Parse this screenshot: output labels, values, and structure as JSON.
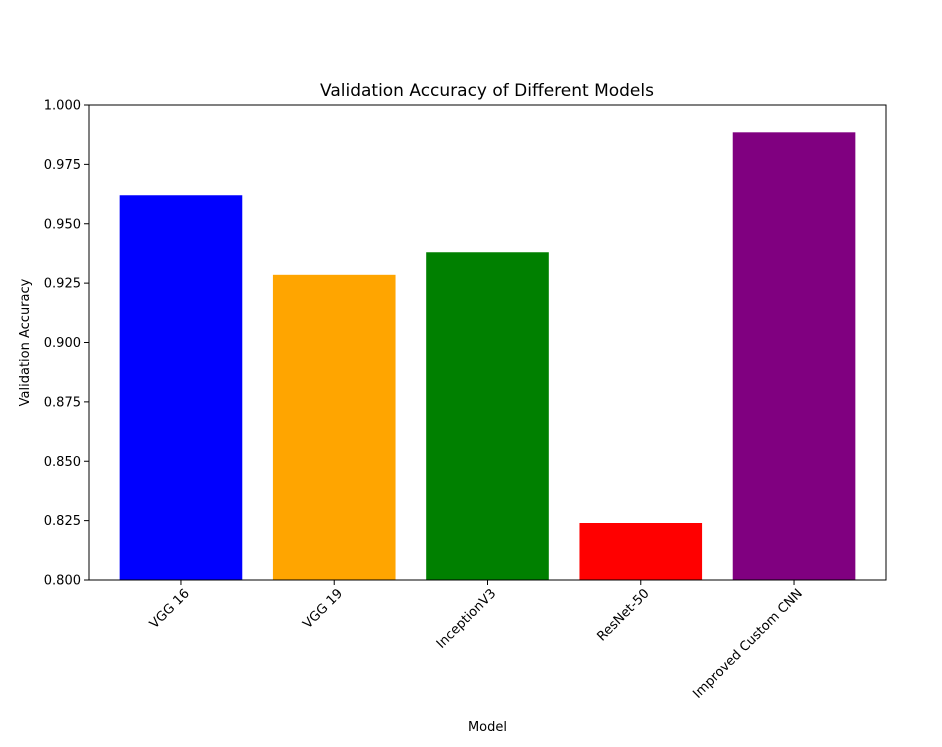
{
  "chart_data": {
    "type": "bar",
    "title": "Validation Accuracy of Different Models",
    "xlabel": "Model",
    "ylabel": "Validation Accuracy",
    "categories": [
      "VGG 16",
      "VGG 19",
      "InceptionV3",
      "ResNet-50",
      "Improved Custom CNN"
    ],
    "values": [
      0.962,
      0.9285,
      0.938,
      0.824,
      0.9885
    ],
    "colors": [
      "#0000ff",
      "#ffa500",
      "#008000",
      "#ff0000",
      "#800080"
    ],
    "ylim": [
      0.8,
      1.0
    ],
    "yticks": [
      "0.800",
      "0.825",
      "0.850",
      "0.875",
      "0.900",
      "0.925",
      "0.950",
      "0.975",
      "1.000"
    ],
    "xtick_rotation": 45,
    "grid": false,
    "legend": "none"
  }
}
